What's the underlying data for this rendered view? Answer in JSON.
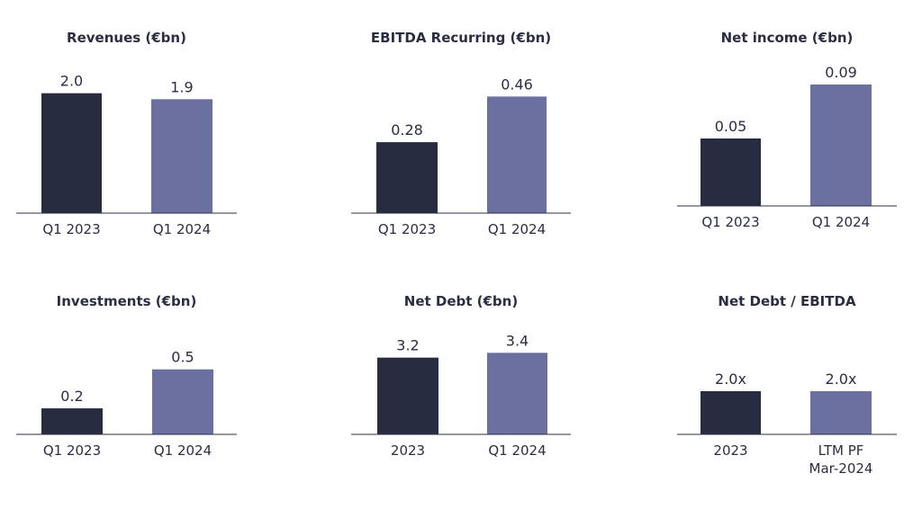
{
  "colors": {
    "dark": "#282c41",
    "light": "#6b70a0",
    "text": "#2b2e42"
  },
  "chart_data": [
    {
      "type": "bar",
      "title": "Revenues (€bn)",
      "categories": [
        "Q1 2023",
        "Q1 2024"
      ],
      "values": [
        2.0,
        1.9
      ],
      "labels": [
        "2.0",
        "1.9"
      ],
      "ylim": [
        0,
        2.4
      ]
    },
    {
      "type": "bar",
      "title": "EBITDA Recurring (€bn)",
      "categories": [
        "Q1 2023",
        "Q1 2024"
      ],
      "values": [
        0.28,
        0.46
      ],
      "labels": [
        "0.28",
        "0.46"
      ],
      "ylim": [
        0,
        0.55
      ]
    },
    {
      "type": "bar",
      "title": "Net income (€bn)",
      "categories": [
        "Q1 2023",
        "Q1 2024"
      ],
      "values": [
        0.05,
        0.09
      ],
      "labels": [
        "0.05",
        "0.09"
      ],
      "ylim": [
        0,
        0.1
      ]
    },
    {
      "type": "bar",
      "title": "Investments (€bn)",
      "categories": [
        "Q1 2023",
        "Q1 2024"
      ],
      "values": [
        0.2,
        0.5
      ],
      "labels": [
        "0.2",
        "0.5"
      ],
      "ylim": [
        0,
        0.83
      ]
    },
    {
      "type": "bar",
      "title": "Net Debt (€bn)",
      "categories": [
        "2023",
        "Q1 2024"
      ],
      "values": [
        3.2,
        3.4
      ],
      "labels": [
        "3.2",
        "3.4"
      ],
      "ylim": [
        0,
        4.5
      ]
    },
    {
      "type": "bar",
      "title": "Net Debt / EBITDA",
      "categories": [
        "2023",
        "LTM PF\nMar-2024"
      ],
      "values": [
        2.0,
        2.0
      ],
      "labels": [
        "2.0x",
        "2.0x"
      ],
      "ylim": [
        0,
        5.0
      ]
    }
  ]
}
